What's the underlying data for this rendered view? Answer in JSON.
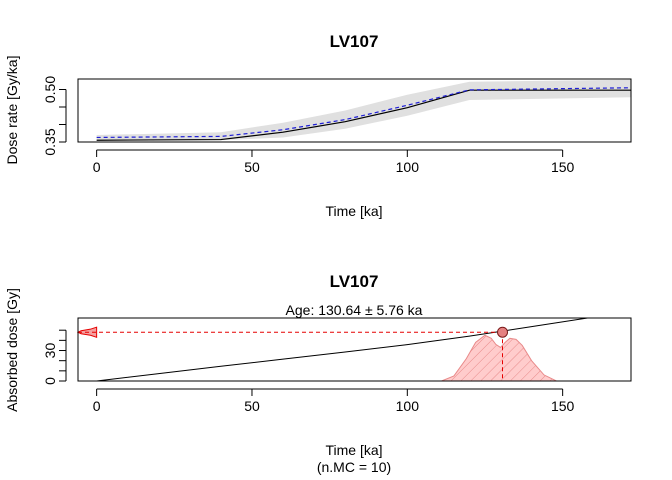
{
  "chart_data": [
    {
      "type": "line",
      "title": "LV107",
      "xlabel": "Time [ka]",
      "ylabel": "Dose rate [Gy/ka]",
      "xlim": [
        -6,
        172
      ],
      "ylim": [
        0.35,
        0.53
      ],
      "x_ticks": [
        0,
        50,
        100,
        150
      ],
      "y_ticks": [
        0.35,
        0.5
      ],
      "y_minor_ticks": [
        0.35,
        0.4,
        0.45,
        0.5
      ],
      "band": {
        "x": [
          0,
          40,
          60,
          80,
          100,
          120,
          172
        ],
        "upper": [
          0.37,
          0.378,
          0.405,
          0.44,
          0.485,
          0.522,
          0.528
        ],
        "lower": [
          0.355,
          0.355,
          0.363,
          0.388,
          0.425,
          0.47,
          0.478
        ]
      },
      "series": [
        {
          "style": "solid",
          "color": "#000000",
          "x": [
            0,
            40,
            60,
            80,
            100,
            120,
            172
          ],
          "y": [
            0.355,
            0.357,
            0.378,
            0.408,
            0.448,
            0.498,
            0.498
          ]
        },
        {
          "style": "dashed",
          "color": "#1f1fd6",
          "x": [
            0,
            40,
            60,
            80,
            100,
            120,
            172
          ],
          "y": [
            0.363,
            0.366,
            0.385,
            0.414,
            0.455,
            0.499,
            0.505
          ]
        }
      ]
    },
    {
      "type": "line",
      "title": "LV107",
      "subtitle": "Age: 130.64 ± 5.76 ka",
      "xlabel": "Time [ka]",
      "xlabel2": "(n.MC = 10)",
      "ylabel": "Absorbed dose [Gy]",
      "xlim": [
        -6,
        172
      ],
      "ylim": [
        0,
        62
      ],
      "x_ticks": [
        0,
        50,
        100,
        150
      ],
      "y_ticks": [
        0,
        30
      ],
      "y_minor_ticks": [
        0,
        10,
        20,
        30,
        40,
        50
      ],
      "dose_curve": {
        "x": [
          0,
          20,
          40,
          60,
          80,
          100,
          120,
          140,
          158
        ],
        "y": [
          0,
          7.2,
          14.5,
          21.5,
          28.5,
          35.8,
          44.2,
          53.5,
          62
        ]
      },
      "age": 130.64,
      "age_error": 5.76,
      "equivalent_dose": 48,
      "age_density": {
        "x": [
          111,
          115,
          119,
          122,
          125,
          127,
          128.5,
          130,
          131.5,
          133,
          135,
          137,
          140,
          144,
          148
        ],
        "y": [
          0,
          5,
          22,
          38,
          45,
          42,
          36,
          33,
          38,
          42,
          41,
          35,
          20,
          6,
          0
        ]
      },
      "dose_density": {
        "y": [
          43,
          45,
          46.5,
          48,
          49.5,
          51,
          53
        ],
        "x": [
          0,
          -2,
          -5,
          -6,
          -5,
          -2,
          0
        ]
      },
      "colors": {
        "density_fill": "#ffcccc",
        "density_line": "#e88a8a",
        "marker": "#e60000",
        "point_fill": "#e58080",
        "curve": "#000000"
      }
    }
  ]
}
